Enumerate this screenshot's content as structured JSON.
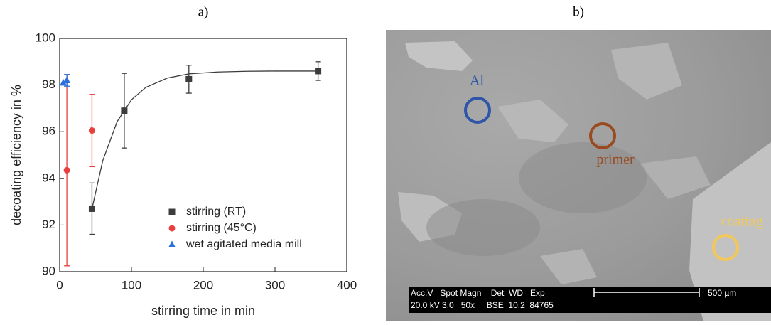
{
  "chart_data": {
    "type": "scatter",
    "title": "a)",
    "x_label": "stirring time in min",
    "y_label": "decoating efficiency in %",
    "xlim": [
      0,
      400
    ],
    "xticks": [
      0,
      100,
      200,
      300,
      400
    ],
    "ylim": [
      90,
      100
    ],
    "yticks": [
      90,
      92,
      94,
      96,
      98,
      100
    ],
    "legend": "lower right",
    "series": [
      {
        "name": "stirring (RT)",
        "color": "#3c3c3c",
        "marker": "square",
        "x": [
          45,
          90,
          180,
          360
        ],
        "values": [
          92.7,
          96.9,
          98.25,
          98.6
        ],
        "errors": [
          1.1,
          1.6,
          0.6,
          0.4
        ]
      },
      {
        "name": "stirring (45°C)",
        "color": "#e8403f",
        "marker": "circle",
        "x": [
          10,
          45
        ],
        "values": [
          94.35,
          96.05
        ],
        "errors": [
          4.1,
          1.55
        ]
      },
      {
        "name": "wet agitated media mill",
        "color": "#2a6fdb",
        "marker": "triangle",
        "x": [
          5,
          10
        ],
        "values": [
          98.1,
          98.2
        ],
        "errors": [
          null,
          0.25
        ]
      }
    ],
    "fit": {
      "color": "#3c3c3c",
      "x": [
        45,
        60,
        80,
        100,
        120,
        150,
        180,
        220,
        260,
        300,
        360
      ],
      "values": [
        92.7,
        94.76,
        96.43,
        97.37,
        97.9,
        98.3,
        98.48,
        98.56,
        98.59,
        98.6,
        98.6
      ]
    }
  },
  "image": {
    "label": "b)",
    "annotations": [
      {
        "text": "Al",
        "color": "#2f55a8"
      },
      {
        "text": "primer",
        "color": "#9a4a1e"
      },
      {
        "text": "coating",
        "color": "#f2c85a"
      }
    ],
    "info_header": "Acc.V   Spot Magn    Det  WD   Exp",
    "info_values": "20.0 kV 3.0   50x     BSE  10.2  84765",
    "scale_bar": "500 µm"
  }
}
